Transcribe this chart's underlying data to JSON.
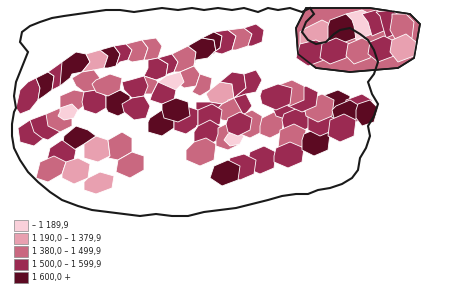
{
  "legend_labels": [
    "– 1 189,9",
    "1 190,0 – 1 379,9",
    "1 380,0 – 1 499,9",
    "1 500,0 – 1 599,9",
    "1 600,0 +"
  ],
  "legend_colors": [
    "#f9d0da",
    "#e8a0b0",
    "#c96880",
    "#9b2a52",
    "#5c0a22"
  ],
  "background_color": "#ffffff",
  "figsize": [
    4.71,
    2.92
  ],
  "dpi": 100
}
